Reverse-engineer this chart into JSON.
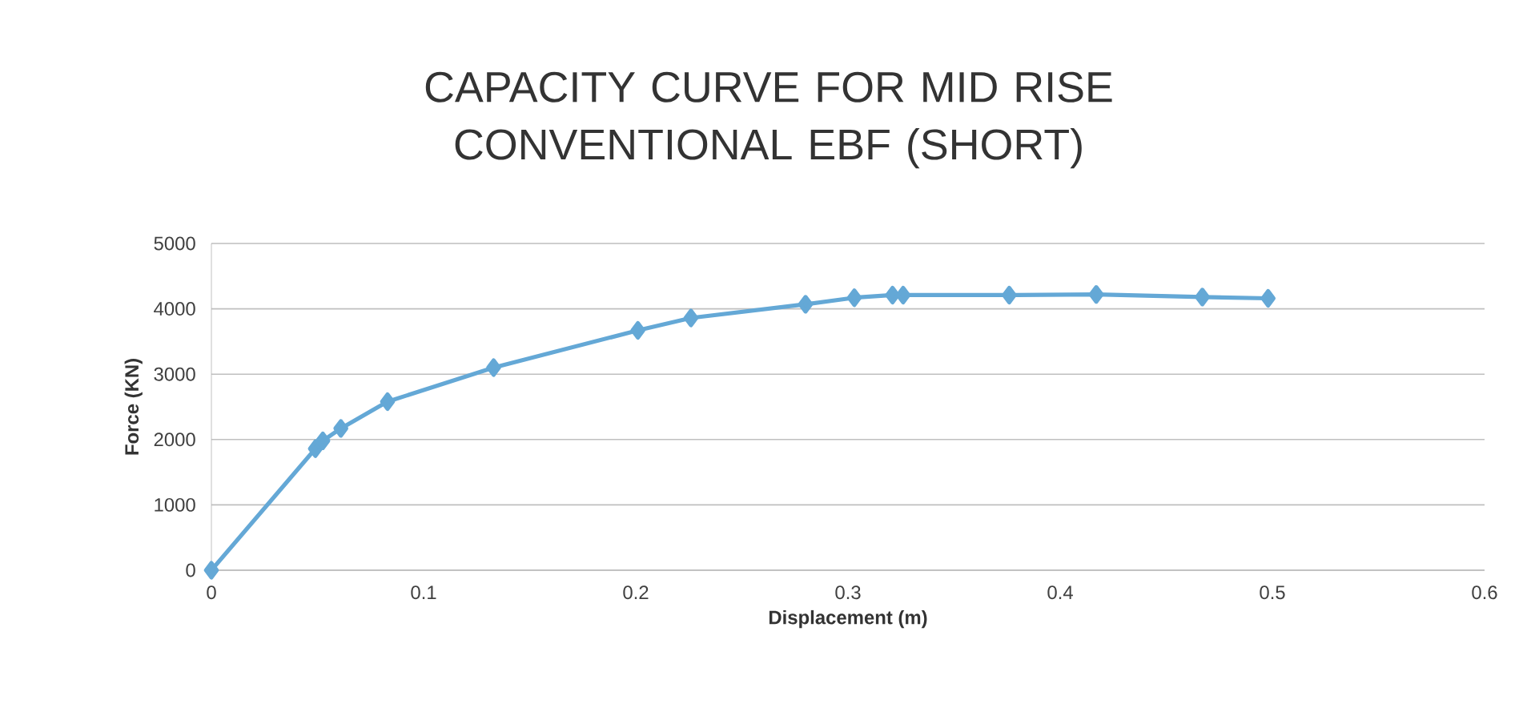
{
  "chart_data": {
    "type": "line",
    "title": "CAPACITY CURVE FOR MID RISE CONVENTIONAL EBF (SHORT)",
    "xlabel": "Displacement  (m)",
    "ylabel": "Force (KN)",
    "x": [
      0,
      0.049,
      0.0525,
      0.061,
      0.083,
      0.133,
      0.201,
      0.226,
      0.28,
      0.303,
      0.321,
      0.326,
      0.376,
      0.417,
      0.467,
      0.498
    ],
    "series": [
      {
        "color": "#64a8d6",
        "values": [
          0,
          1860,
          1980,
          2170,
          2580,
          3100,
          3670,
          3860,
          4070,
          4170,
          4210,
          4210,
          4210,
          4220,
          4180,
          4160
        ]
      }
    ],
    "xlim": [
      0,
      0.6
    ],
    "xticks": [
      0,
      0.1,
      0.2,
      0.3,
      0.4,
      0.5,
      0.6
    ],
    "ylim": [
      0,
      5000
    ],
    "yticks": [
      0,
      1000,
      2000,
      3000,
      4000,
      5000
    ],
    "grid": "y",
    "marker": "diamond",
    "line_style": "solid"
  }
}
